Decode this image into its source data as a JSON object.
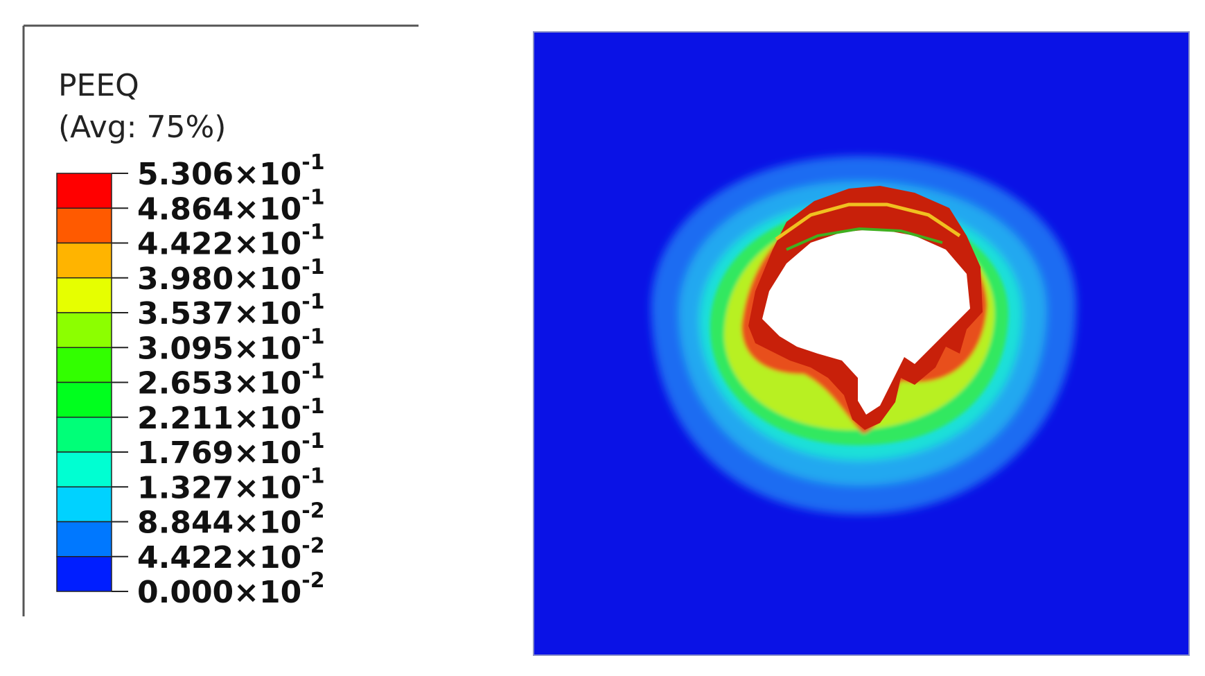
{
  "legend": {
    "title": "PEEQ",
    "subtitle": "(Avg: 75%)",
    "band_colors": [
      "#ff0000",
      "#ff5a00",
      "#ffb400",
      "#e6ff00",
      "#8cff00",
      "#32ff00",
      "#00ff1e",
      "#00ff78",
      "#00ffd2",
      "#00d2ff",
      "#0078ff",
      "#001eff"
    ],
    "labels": [
      {
        "mantissa": "5.306×10",
        "exponent": "-1"
      },
      {
        "mantissa": "4.864×10",
        "exponent": "-1"
      },
      {
        "mantissa": "4.422×10",
        "exponent": "-1"
      },
      {
        "mantissa": "3.980×10",
        "exponent": "-1"
      },
      {
        "mantissa": "3.537×10",
        "exponent": "-1"
      },
      {
        "mantissa": "3.095×10",
        "exponent": "-1"
      },
      {
        "mantissa": "2.653×10",
        "exponent": "-1"
      },
      {
        "mantissa": "2.211×10",
        "exponent": "-1"
      },
      {
        "mantissa": "1.769×10",
        "exponent": "-1"
      },
      {
        "mantissa": "1.327×10",
        "exponent": "-1"
      },
      {
        "mantissa": "8.844×10",
        "exponent": "-2"
      },
      {
        "mantissa": "4.422×10",
        "exponent": "-2"
      },
      {
        "mantissa": "0.000×10",
        "exponent": "-2"
      }
    ]
  }
}
